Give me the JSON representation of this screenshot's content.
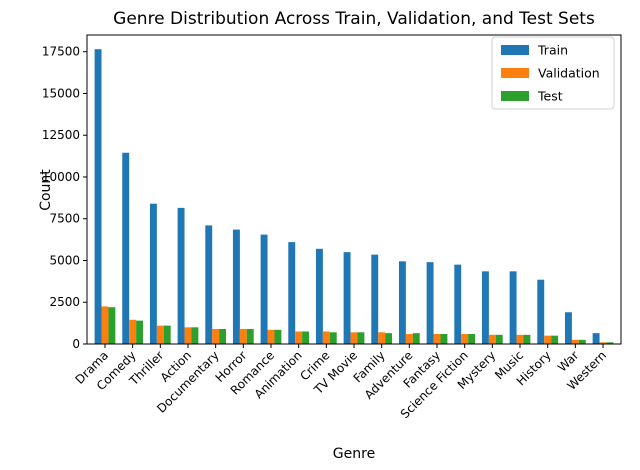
{
  "chart_data": {
    "type": "bar",
    "title": "Genre Distribution Across Train, Validation, and Test Sets",
    "xlabel": "Genre",
    "ylabel": "Count",
    "ylim": [
      0,
      18500
    ],
    "yticks": [
      0,
      2500,
      5000,
      7500,
      10000,
      12500,
      15000,
      17500
    ],
    "grid": false,
    "legend_position": "top-right",
    "categories": [
      "Drama",
      "Comedy",
      "Thriller",
      "Action",
      "Documentary",
      "Horror",
      "Romance",
      "Animation",
      "Crime",
      "TV Movie",
      "Family",
      "Adventure",
      "Fantasy",
      "Science Fiction",
      "Mystery",
      "Music",
      "History",
      "War",
      "Western"
    ],
    "series": [
      {
        "name": "Train",
        "color": "#1f77b4",
        "values": [
          17650,
          11450,
          8400,
          8150,
          7100,
          6850,
          6550,
          6100,
          5700,
          5500,
          5350,
          4950,
          4900,
          4750,
          4350,
          4350,
          3850,
          1900,
          650
        ]
      },
      {
        "name": "Validation",
        "color": "#ff7f0e",
        "values": [
          2250,
          1450,
          1100,
          1000,
          900,
          900,
          850,
          750,
          750,
          700,
          700,
          600,
          600,
          600,
          550,
          550,
          500,
          250,
          100
        ]
      },
      {
        "name": "Test",
        "color": "#2ca02c",
        "values": [
          2200,
          1400,
          1100,
          1000,
          900,
          900,
          850,
          750,
          700,
          700,
          650,
          650,
          600,
          600,
          550,
          550,
          500,
          250,
          100
        ]
      }
    ]
  }
}
